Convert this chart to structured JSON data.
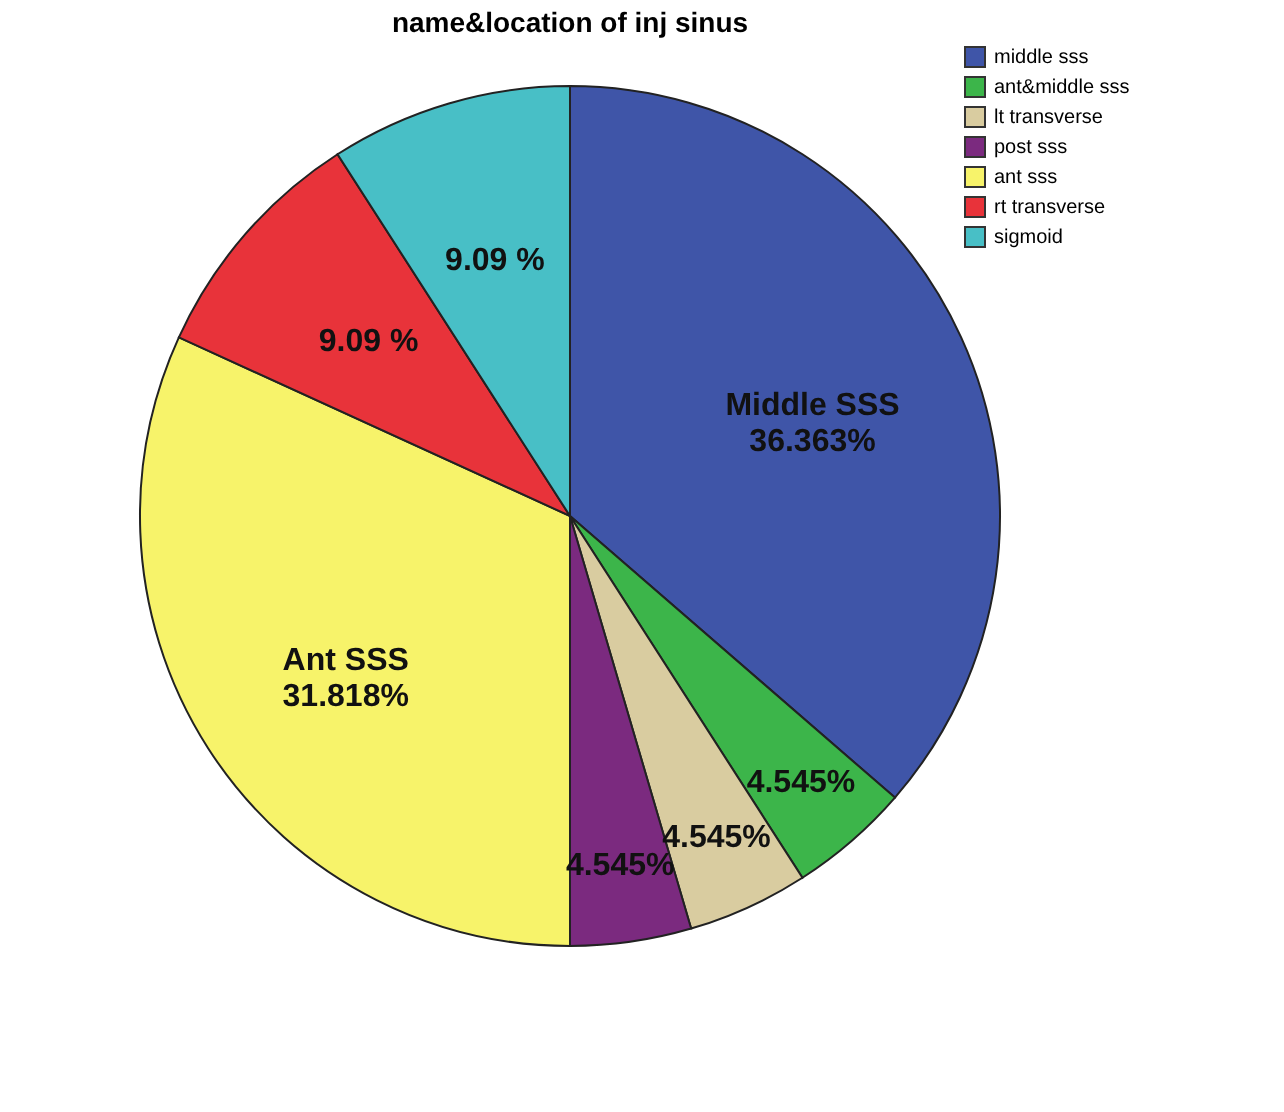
{
  "chart_data": {
    "type": "pie",
    "title": "name&location of inj sinus",
    "categories": [
      "middle sss",
      "ant&middle sss",
      "lt transverse",
      "post sss",
      "ant sss",
      "rt transverse",
      "sigmoid"
    ],
    "values": [
      36.363,
      4.545,
      4.545,
      4.545,
      31.818,
      9.09,
      9.09
    ],
    "colors": [
      "#3f55a8",
      "#3cb54a",
      "#d9cca0",
      "#7b2a7f",
      "#f7f36a",
      "#e8333a",
      "#48bfc6"
    ],
    "value_labels": [
      "Middle SSS\n36.363%",
      "4.545%",
      "4.545%",
      "4.545%",
      "Ant SSS\n31.818%",
      "9.09 %",
      "9.09 %"
    ],
    "legend": "top right"
  }
}
